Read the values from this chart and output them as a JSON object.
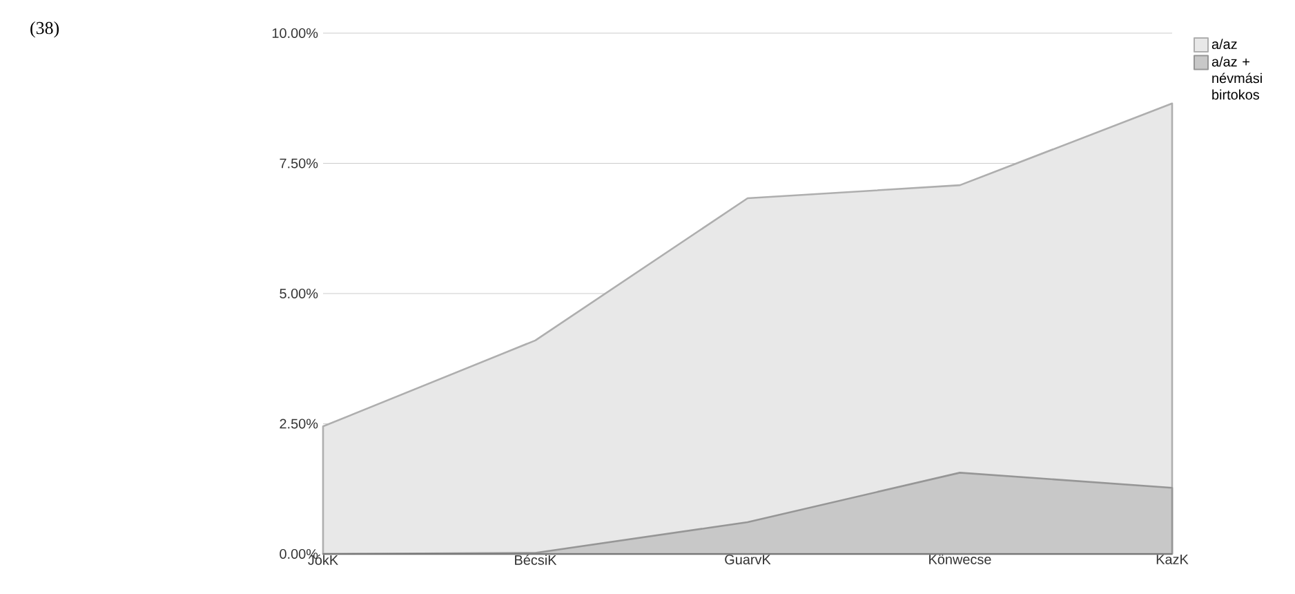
{
  "chart_data": {
    "type": "area",
    "annotations": [
      "(38)"
    ],
    "categories": [
      "JókK",
      "BécsiK",
      "GuarvK",
      "Könwecse",
      "KazK"
    ],
    "series": [
      {
        "name": "a/az",
        "color": "#e8e8e8",
        "values": [
          2.45,
          4.1,
          6.83,
          7.08,
          8.65
        ]
      },
      {
        "name": "a/az + névmási birtokos",
        "color": "#c8c8c8",
        "values": [
          0,
          0.02,
          0.61,
          1.56,
          1.27
        ]
      }
    ],
    "ylim": [
      0,
      10
    ],
    "yticks": [
      {
        "value": 0,
        "label": "0.00%"
      },
      {
        "value": 2.5,
        "label": "2.50%"
      },
      {
        "value": 5,
        "label": "5.00%"
      },
      {
        "value": 7.5,
        "label": "7.50%"
      },
      {
        "value": 10,
        "label": "10.00%"
      }
    ],
    "grid": "y",
    "legend": "top right"
  }
}
